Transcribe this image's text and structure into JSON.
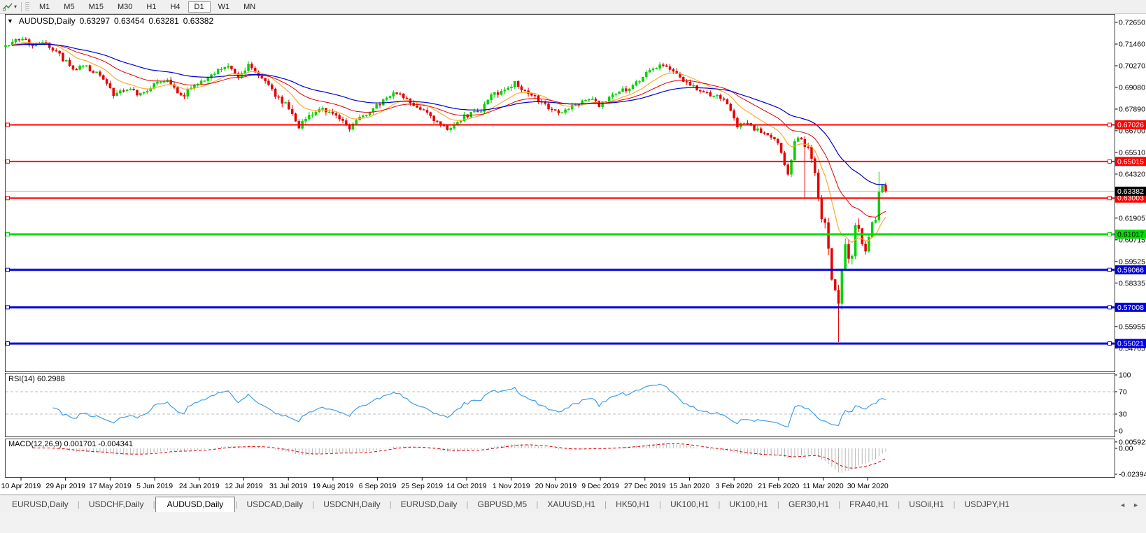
{
  "toolbar": {
    "timeframes": [
      "M1",
      "M5",
      "M15",
      "M30",
      "H1",
      "H4",
      "D1",
      "W1",
      "MN"
    ],
    "active_timeframe": "D1",
    "dropdown_caret_icon": "▾"
  },
  "chart_header": {
    "caret_icon": "▼",
    "symbol_label": "AUDUSD,Daily",
    "open": "0.63297",
    "high": "0.63454",
    "low": "0.63281",
    "close": "0.63382"
  },
  "chart_data": {
    "type": "candlestick",
    "symbol": "AUDUSD",
    "timeframe": "Daily",
    "colors": {
      "bull_candle": "#00D200",
      "bear_candle": "#E60000",
      "ma_fast": "#FFAA33",
      "ma_mid": "#E00000",
      "ma_slow": "#0000CC",
      "rsi_line": "#3E9EEB",
      "macd_histogram": "#B4B4B4",
      "macd_signal": "#E00000",
      "current_price_line": "#C0C0C0"
    },
    "x_tick_labels": [
      "10 Apr 2019",
      "29 Apr 2019",
      "17 May 2019",
      "5 Jun 2019",
      "24 Jun 2019",
      "12 Jul 2019",
      "31 Jul 2019",
      "19 Aug 2019",
      "6 Sep 2019",
      "25 Sep 2019",
      "14 Oct 2019",
      "1 Nov 2019",
      "20 Nov 2019",
      "9 Dec 2019",
      "27 Dec 2019",
      "15 Jan 2020",
      "3 Feb 2020",
      "21 Feb 2020",
      "11 Mar 2020",
      "30 Mar 2020"
    ],
    "y_axis_ticks": [
      "0.72650",
      "0.71460",
      "0.70270",
      "0.69080",
      "0.67890",
      "0.66700",
      "0.65510",
      "0.64320",
      "0.61905",
      "0.60715",
      "0.59525",
      "0.58335",
      "0.55955",
      "0.54765"
    ],
    "current_price": 0.63382,
    "current_price_label": "0.63382",
    "levels": [
      {
        "price": 0.67026,
        "label": "0.67026",
        "color": "#FF0000",
        "width": 2,
        "label_text": "#FFFFFF"
      },
      {
        "price": 0.65015,
        "label": "0.65015",
        "color": "#FF0000",
        "width": 2,
        "label_text": "#FFFFFF"
      },
      {
        "price": 0.63003,
        "label": "0.63003",
        "color": "#FF0000",
        "width": 2,
        "label_text": "#FFFFFF"
      },
      {
        "price": 0.61017,
        "label": "0.61017",
        "color": "#00DD00",
        "width": 3,
        "label_text": "#000000"
      },
      {
        "price": 0.59066,
        "label": "0.59066",
        "color": "#0000E0",
        "width": 3,
        "label_text": "#FFFFFF"
      },
      {
        "price": 0.57008,
        "label": "0.57008",
        "color": "#0000E0",
        "width": 3,
        "label_text": "#FFFFFF"
      },
      {
        "price": 0.55021,
        "label": "0.55021",
        "color": "#0000E0",
        "width": 3,
        "label_text": "#FFFFFF"
      }
    ],
    "moving_averages": [
      {
        "period": 12,
        "color": "#FFAA33",
        "width": 1.2
      },
      {
        "period": 26,
        "color": "#E00000",
        "width": 1
      },
      {
        "period": 52,
        "color": "#0000CC",
        "width": 1.2
      }
    ],
    "num_candles": 262,
    "price_path_waypoints": [
      [
        0,
        0.713
      ],
      [
        3,
        0.7185
      ],
      [
        8,
        0.714
      ],
      [
        12,
        0.715
      ],
      [
        16,
        0.7085
      ],
      [
        20,
        0.7005
      ],
      [
        23,
        0.703
      ],
      [
        27,
        0.6985
      ],
      [
        32,
        0.6875
      ],
      [
        36,
        0.6905
      ],
      [
        40,
        0.6865
      ],
      [
        44,
        0.693
      ],
      [
        48,
        0.696
      ],
      [
        52,
        0.6855
      ],
      [
        57,
        0.6935
      ],
      [
        62,
        0.6985
      ],
      [
        66,
        0.703
      ],
      [
        69,
        0.695
      ],
      [
        72,
        0.704
      ],
      [
        76,
        0.696
      ],
      [
        80,
        0.687
      ],
      [
        84,
        0.68
      ],
      [
        87,
        0.669
      ],
      [
        91,
        0.677
      ],
      [
        95,
        0.679
      ],
      [
        99,
        0.6735
      ],
      [
        102,
        0.6685
      ],
      [
        107,
        0.6765
      ],
      [
        111,
        0.682
      ],
      [
        116,
        0.688
      ],
      [
        121,
        0.681
      ],
      [
        125,
        0.676
      ],
      [
        129,
        0.6705
      ],
      [
        132,
        0.6672
      ],
      [
        136,
        0.675
      ],
      [
        141,
        0.6775
      ],
      [
        144,
        0.686
      ],
      [
        148,
        0.6895
      ],
      [
        151,
        0.693
      ],
      [
        157,
        0.6855
      ],
      [
        161,
        0.679
      ],
      [
        165,
        0.677
      ],
      [
        169,
        0.6815
      ],
      [
        173,
        0.685
      ],
      [
        176,
        0.681
      ],
      [
        180,
        0.6865
      ],
      [
        184,
        0.69
      ],
      [
        188,
        0.695
      ],
      [
        192,
        0.701
      ],
      [
        195,
        0.7035
      ],
      [
        199,
        0.6975
      ],
      [
        203,
        0.6925
      ],
      [
        207,
        0.6875
      ],
      [
        211,
        0.6855
      ],
      [
        214,
        0.682
      ],
      [
        217,
        0.669
      ],
      [
        219,
        0.672
      ],
      [
        222,
        0.6685
      ],
      [
        225,
        0.6665
      ],
      [
        228,
        0.662
      ],
      [
        230,
        0.656
      ],
      [
        231,
        0.648
      ],
      [
        232,
        0.6435
      ],
      [
        234,
        0.66
      ],
      [
        235,
        0.664
      ],
      [
        236,
        0.661
      ],
      [
        237,
        0.658
      ],
      [
        238,
        0.656
      ],
      [
        239,
        0.65
      ],
      [
        240,
        0.6455
      ],
      [
        241,
        0.631
      ],
      [
        242,
        0.62
      ],
      [
        243,
        0.614
      ],
      [
        244,
        0.601
      ],
      [
        245,
        0.588
      ],
      [
        246,
        0.578
      ],
      [
        247,
        0.5745
      ],
      [
        248,
        0.589
      ],
      [
        249,
        0.605
      ],
      [
        250,
        0.596
      ],
      [
        251,
        0.5975
      ],
      [
        252,
        0.616
      ],
      [
        253,
        0.612
      ],
      [
        254,
        0.607
      ],
      [
        255,
        0.5995
      ],
      [
        256,
        0.609
      ],
      [
        257,
        0.616
      ],
      [
        258,
        0.619
      ],
      [
        259,
        0.634
      ],
      [
        260,
        0.6375
      ],
      [
        261,
        0.63382
      ]
    ],
    "candle_overrides": [
      {
        "d": 232,
        "low": 0.642
      },
      {
        "d": 237,
        "low": 0.63
      },
      {
        "d": 247,
        "low": 0.551
      },
      {
        "d": 259,
        "high": 0.6445
      }
    ],
    "synthesis": {
      "seed": 11,
      "body_noise": 0.0013,
      "wick_noise": 0.0017,
      "volatility_zones": [
        {
          "from": 80,
          "to": 95,
          "mult": 1.4
        },
        {
          "from": 236,
          "to": 256,
          "mult": 2.2
        }
      ]
    },
    "indicators": {
      "rsi": {
        "label": "RSI(14) 60.2988",
        "period": 14,
        "display_value": "60.2988",
        "dashed_levels": [
          70,
          30
        ],
        "scale_labels": [
          "100",
          "70",
          "30",
          "0"
        ]
      },
      "macd": {
        "label": "MACD(12,26,9) 0.001701 -0.004341",
        "params": "12,26,9",
        "main_value": "0.001701",
        "signal_value": "-0.004341",
        "scale_labels": [
          "0.005923",
          "0.00",
          "-0.02394"
        ]
      }
    },
    "legend_position": "none",
    "grid": "off"
  },
  "tabs": {
    "items": [
      "EURUSD,Daily",
      "USDCHF,Daily",
      "AUDUSD,Daily",
      "USDCAD,Daily",
      "USDCNH,Daily",
      "EURUSD,Daily",
      "GBPUSD,M5",
      "XAUUSD,H1",
      "HK50,H1",
      "UK100,H1",
      "UK100,H1",
      "GER30,H1",
      "FRA40,H1",
      "USOil,H1",
      "USDJPY,H1"
    ],
    "active_index": 2,
    "scroll_left_icon": "◄",
    "scroll_right_icon": "►"
  }
}
